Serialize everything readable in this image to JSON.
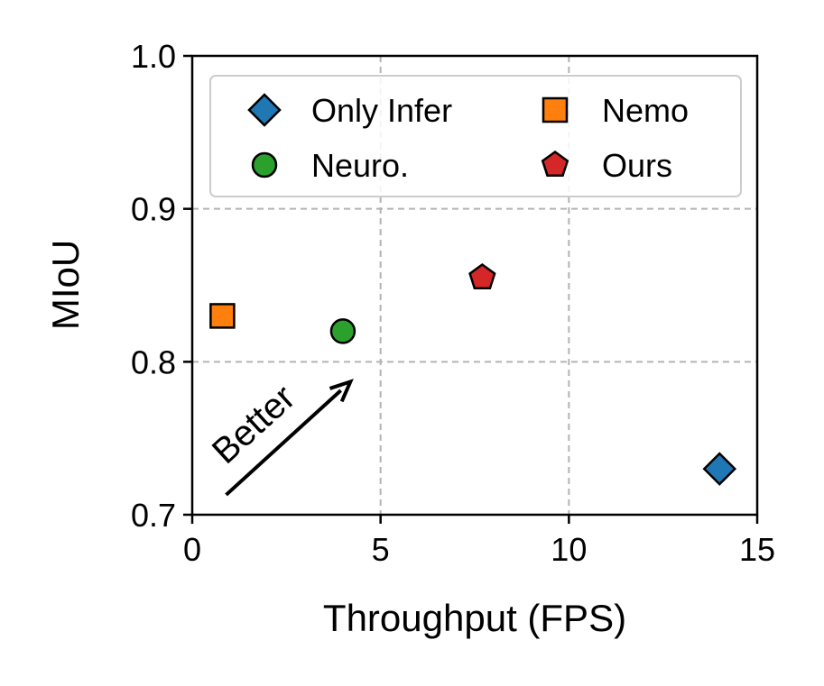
{
  "chart_data": {
    "type": "scatter",
    "title": "",
    "xlabel": "Throughput (FPS)",
    "ylabel": "MIoU",
    "xlim": [
      0,
      15
    ],
    "ylim": [
      0.7,
      1.0
    ],
    "xticks": [
      0,
      5,
      10,
      15
    ],
    "xtick_labels": [
      "0",
      "5",
      "10",
      "15"
    ],
    "yticks": [
      0.7,
      0.8,
      0.9,
      1.0
    ],
    "ytick_labels": [
      "0.7",
      "0.8",
      "0.9",
      "1.0"
    ],
    "grid": true,
    "legend_position": "top",
    "series": [
      {
        "name": "Only Infer",
        "marker": "diamond",
        "color": "#1f77b4",
        "x": 14.0,
        "y": 0.73
      },
      {
        "name": "Nemo",
        "marker": "square",
        "color": "#ff7f0e",
        "x": 0.8,
        "y": 0.83
      },
      {
        "name": "Neuro.",
        "marker": "circle",
        "color": "#2ca02c",
        "x": 4.0,
        "y": 0.82
      },
      {
        "name": "Ours",
        "marker": "pentagon",
        "color": "#d62728",
        "x": 7.7,
        "y": 0.855
      }
    ],
    "annotations": [
      {
        "text": "Better",
        "from": [
          0.9,
          0.713
        ],
        "to": [
          4.2,
          0.787
        ]
      }
    ]
  }
}
